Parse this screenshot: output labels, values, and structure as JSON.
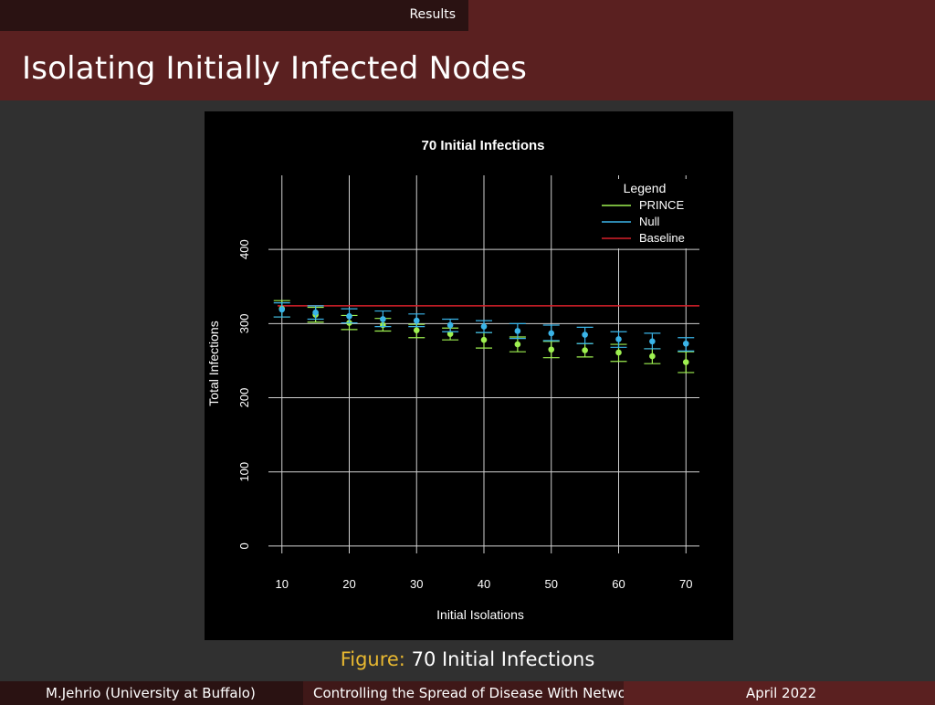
{
  "header": {
    "section": "Results"
  },
  "slide": {
    "title": "Isolating Initially Infected Nodes"
  },
  "caption": {
    "label": "Figure:",
    "text": "70 Initial Infections"
  },
  "footer": {
    "author": "M.Jehrio  (University at Buffalo)",
    "talk_title": "Controlling the Spread of Disease With Netwo",
    "date": "April 2022"
  },
  "chart_data": {
    "type": "scatter",
    "title": "70 Initial Infections",
    "xlabel": "Initial Isolations",
    "ylabel": "Total Infections",
    "xlim": [
      8,
      72
    ],
    "ylim": [
      -10,
      500
    ],
    "x_ticks": [
      10,
      20,
      30,
      40,
      50,
      60,
      70
    ],
    "y_ticks": [
      0,
      100,
      200,
      300,
      400
    ],
    "grid": true,
    "background": "#000000",
    "legend": {
      "title": "Legend",
      "position": "top-right",
      "entries": [
        {
          "name": "PRINCE",
          "color": "#9ef050"
        },
        {
          "name": "Null",
          "color": "#3ab4e8"
        },
        {
          "name": "Baseline",
          "color": "#d8202a"
        }
      ]
    },
    "x": [
      10,
      15,
      20,
      25,
      30,
      35,
      40,
      45,
      50,
      55,
      60,
      65,
      70
    ],
    "series": [
      {
        "name": "PRINCE",
        "color": "#9ef050",
        "mean": [
          320,
          312,
          301,
          298,
          291,
          286,
          278,
          272,
          265,
          264,
          261,
          256,
          248
        ],
        "lower": [
          309,
          302,
          292,
          290,
          281,
          278,
          267,
          262,
          254,
          255,
          249,
          246,
          234
        ],
        "upper": [
          331,
          322,
          311,
          307,
          299,
          294,
          288,
          282,
          276,
          273,
          272,
          266,
          262
        ]
      },
      {
        "name": "Null",
        "color": "#3ab4e8",
        "mean": [
          319,
          315,
          310,
          306,
          304,
          298,
          296,
          290,
          287,
          285,
          279,
          276,
          273
        ],
        "lower": [
          309,
          306,
          301,
          296,
          296,
          289,
          288,
          280,
          277,
          273,
          268,
          266,
          263
        ],
        "upper": [
          328,
          324,
          320,
          317,
          313,
          306,
          304,
          300,
          298,
          295,
          289,
          287,
          281
        ]
      }
    ],
    "baseline": {
      "name": "Baseline",
      "value": 324,
      "color": "#d8202a"
    }
  }
}
